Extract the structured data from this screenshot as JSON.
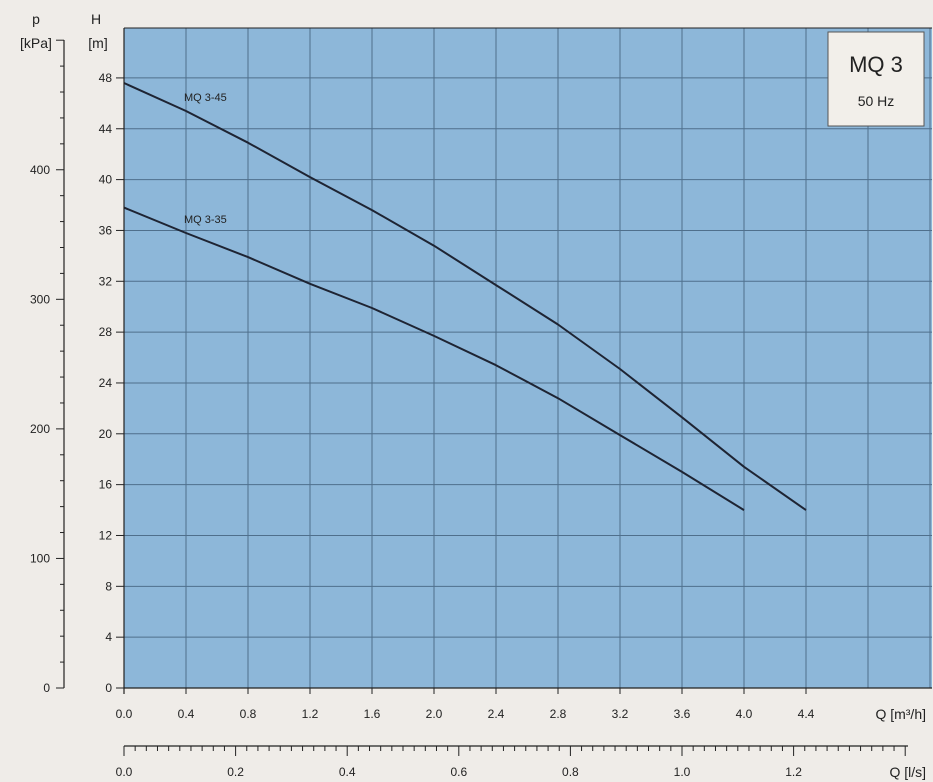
{
  "colors": {
    "plot_bg": "#8db7d9",
    "grid": "#4f6f8c",
    "curve": "#1e2433",
    "page_bg": "#efece8",
    "legend_bg": "#f2efea"
  },
  "legend_box": {
    "title": "MQ 3",
    "subtitle": "50 Hz"
  },
  "chart_data": {
    "type": "line",
    "title": "MQ 3",
    "subtitle": "50 Hz",
    "grid": true,
    "legend_placement": "top-right",
    "x_axis": {
      "label": "Q [m³/h]",
      "range": [
        0,
        5.0
      ],
      "ticks": [
        "0.0",
        "0.4",
        "0.8",
        "1.2",
        "1.6",
        "2.0",
        "2.4",
        "2.8",
        "3.2",
        "3.6",
        "4.0",
        "4.4"
      ]
    },
    "x2_axis": {
      "label": "Q [l/s]",
      "range": [
        0,
        1.39
      ],
      "ticks": [
        "0.0",
        "0.2",
        "0.4",
        "0.6",
        "0.8",
        "1.0",
        "1.2"
      ]
    },
    "y_axis": {
      "label_symbol": "H",
      "label_unit": "[m]",
      "range": [
        0,
        52
      ],
      "ticks": [
        "0",
        "4",
        "8",
        "12",
        "16",
        "20",
        "24",
        "28",
        "32",
        "36",
        "40",
        "44",
        "48"
      ]
    },
    "y2_axis": {
      "label_symbol": "p",
      "label_unit": "[kPa]",
      "range": [
        0,
        510
      ],
      "ticks": [
        "0",
        "100",
        "200",
        "300",
        "400"
      ]
    },
    "series": [
      {
        "name": "MQ 3-45",
        "x": [
          0.0,
          0.4,
          0.8,
          1.2,
          1.6,
          2.0,
          2.4,
          2.8,
          3.2,
          3.6,
          4.0,
          4.4
        ],
        "y": [
          47.6,
          45.4,
          42.9,
          40.2,
          37.6,
          34.8,
          31.7,
          28.6,
          25.1,
          21.3,
          17.4,
          14.0
        ]
      },
      {
        "name": "MQ 3-35",
        "x": [
          0.0,
          0.4,
          0.8,
          1.2,
          1.6,
          2.0,
          2.4,
          2.8,
          3.2,
          3.6,
          4.0
        ],
        "y": [
          37.8,
          35.8,
          33.9,
          31.8,
          29.9,
          27.7,
          25.4,
          22.8,
          19.9,
          17.0,
          14.0
        ]
      }
    ]
  }
}
